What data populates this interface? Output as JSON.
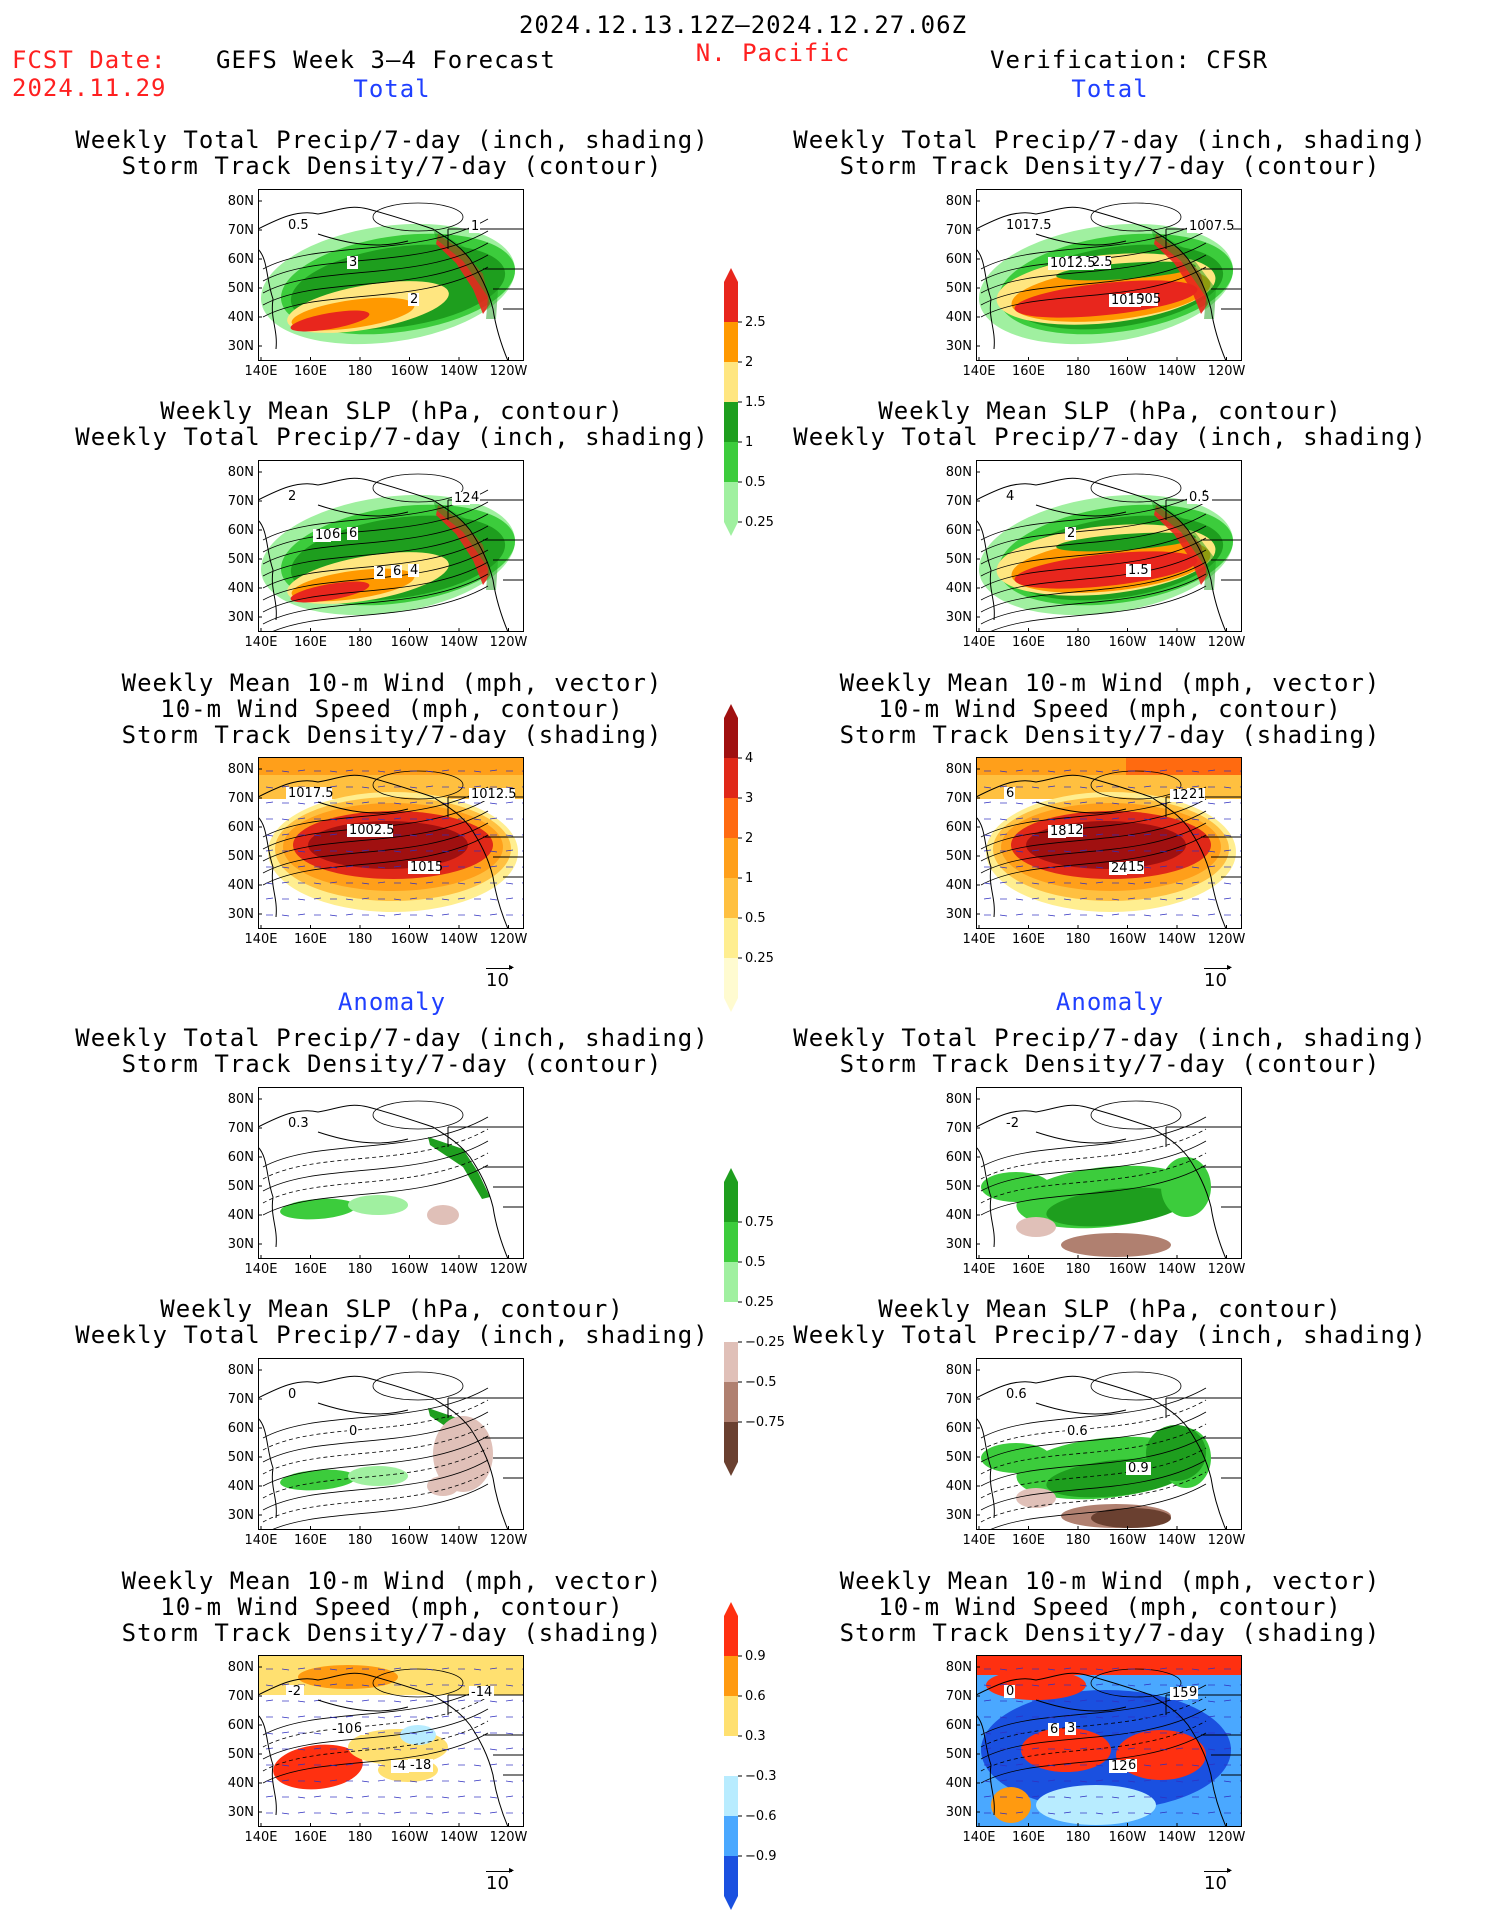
{
  "header": {
    "date_range": "2024.12.13.12Z–2024.12.27.06Z",
    "region": "N. Pacific",
    "fcst_label": "FCST Date:",
    "fcst_date": "2024.11.29",
    "model": "GEFS Week 3–4 Forecast",
    "verification": "Verification: CFSR"
  },
  "sections": {
    "total": "Total",
    "anomaly": "Anomaly"
  },
  "titles": {
    "precip_storm": [
      "Weekly Total Precip/7-day (inch, shading)",
      "Storm Track Density/7-day (contour)"
    ],
    "slp_precip": [
      "Weekly Mean SLP (hPa, contour)",
      "Weekly Total Precip/7-day (inch, shading)"
    ],
    "wind_storm": [
      "Weekly Mean 10-m Wind (mph, vector)",
      "10-m Wind Speed (mph, contour)",
      "Storm Track Density/7-day (shading)"
    ]
  },
  "axes": {
    "lat": [
      "80N",
      "70N",
      "60N",
      "50N",
      "40N",
      "30N"
    ],
    "lon": [
      "140E",
      "160E",
      "180",
      "160W",
      "140W",
      "120W"
    ]
  },
  "vector_ref": "10",
  "colorbars": {
    "precip_total": {
      "labels": [
        "2.5",
        "2",
        "1.5",
        "1",
        "0.5",
        "0.25"
      ],
      "colors": [
        "#e8261d",
        "#ff9900",
        "#ffe680",
        "#1e9e1e",
        "#3ccc3c",
        "#a0f0a0"
      ]
    },
    "storm_total": {
      "labels": [
        "4",
        "3",
        "2",
        "1",
        "0.5",
        "0.25"
      ],
      "colors": [
        "#a01010",
        "#e02818",
        "#ff6a10",
        "#ff9f1a",
        "#ffc040",
        "#ffee90",
        "#fffbd0"
      ]
    },
    "precip_anom": {
      "labels": [
        "0.75",
        "0.5",
        "0.25",
        "−0.25",
        "−0.5",
        "−0.75"
      ],
      "colors": [
        "#1e9e1e",
        "#3ccc3c",
        "#a0f0a0",
        "#ffffff",
        "#e0c0b8",
        "#b08070",
        "#6a4030"
      ]
    },
    "storm_anom": {
      "labels": [
        "0.9",
        "0.6",
        "0.3",
        "−0.3",
        "−0.6",
        "−0.9"
      ],
      "colors": [
        "#ff3010",
        "#ff9a10",
        "#ffe070",
        "#ffffff",
        "#b8ecff",
        "#4aa8ff",
        "#1a50e0"
      ]
    }
  },
  "contour_labels": {
    "p1": [
      "0.5",
      "3",
      "2",
      "1"
    ],
    "p2": [
      "1017.5",
      "1002.5",
      "1005",
      "1007.5",
      "1012.5",
      "1015"
    ],
    "p3": [
      "2",
      "6",
      "4",
      "4",
      "6",
      "6",
      "12",
      "10",
      "2"
    ],
    "p4": [
      "4",
      "2",
      "1.5",
      "0.5"
    ],
    "p5": [
      "1017.5",
      "1002.5",
      "1015",
      "1012.5"
    ],
    "p6": [
      "6",
      "12",
      "15",
      "21",
      "18",
      "24",
      "12"
    ],
    "p7": [
      "0.3"
    ],
    "p8": [
      "-2"
    ],
    "p9": [
      "0",
      "0"
    ],
    "p10": [
      "0.6",
      "0.6",
      "0.9"
    ],
    "p11": [
      "-2",
      "-6",
      "-18",
      "-14",
      "-10",
      "-4"
    ],
    "p12": [
      "0",
      "3",
      "6",
      "9",
      "6",
      "12",
      "15"
    ]
  }
}
